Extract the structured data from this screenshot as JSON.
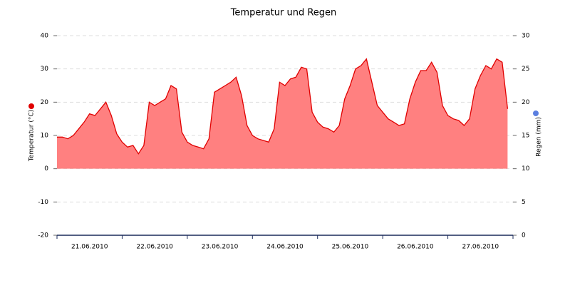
{
  "chart_data": {
    "type": "area",
    "title": "Temperatur und Regen",
    "y_label": "Temperatur (°C)",
    "y2_label": "Regen (mm)",
    "y2_color": "#5b7fe0",
    "categories": [
      null,
      null,
      null,
      null,
      null,
      null,
      "21.06.2010",
      null,
      null,
      null,
      null,
      null,
      null,
      null,
      null,
      null,
      null,
      null,
      "22.06.2010",
      null,
      null,
      null,
      null,
      null,
      null,
      null,
      null,
      null,
      null,
      null,
      "23.06.2010",
      null,
      null,
      null,
      null,
      null,
      null,
      null,
      null,
      null,
      null,
      null,
      "24.06.2010",
      null,
      null,
      null,
      null,
      null,
      null,
      null,
      null,
      null,
      null,
      null,
      "25.06.2010",
      null,
      null,
      null,
      null,
      null,
      null,
      null,
      null,
      null,
      null,
      null,
      "26.06.2010",
      null,
      null,
      null,
      null,
      null,
      null,
      null,
      null,
      null,
      null,
      null,
      "27.06.2010",
      null,
      null,
      null,
      null,
      null
    ],
    "series": [
      {
        "name": "Temperatur",
        "color": "#e00000",
        "fill": "#ff8080",
        "values": [
          9.5,
          9.5,
          9,
          10,
          12,
          14,
          16.5,
          16,
          18,
          20,
          16,
          10.5,
          8,
          6.5,
          7,
          4.5,
          7,
          20,
          19,
          20,
          21,
          25,
          24,
          11,
          8,
          7,
          6.5,
          6,
          9,
          23,
          24,
          25,
          26,
          27.5,
          22,
          13,
          10,
          9,
          8.5,
          8,
          12,
          26,
          25,
          27,
          27.5,
          30.5,
          30,
          17,
          14,
          12.5,
          12,
          11,
          13,
          21,
          25,
          30,
          31,
          33,
          26,
          19,
          17,
          15,
          14,
          13,
          13.5,
          21,
          26,
          29.5,
          29.5,
          32,
          29,
          19,
          16,
          15,
          14.5,
          13,
          15,
          24,
          28,
          31,
          30,
          33,
          32,
          18
        ]
      }
    ],
    "ylim": [
      -20,
      40
    ],
    "yticks": [
      -20,
      -10,
      0,
      10,
      20,
      30,
      40
    ],
    "y2lim": [
      0,
      30
    ],
    "y2ticks": [
      0,
      5,
      10,
      15,
      20,
      25,
      30
    ],
    "grid": true
  }
}
